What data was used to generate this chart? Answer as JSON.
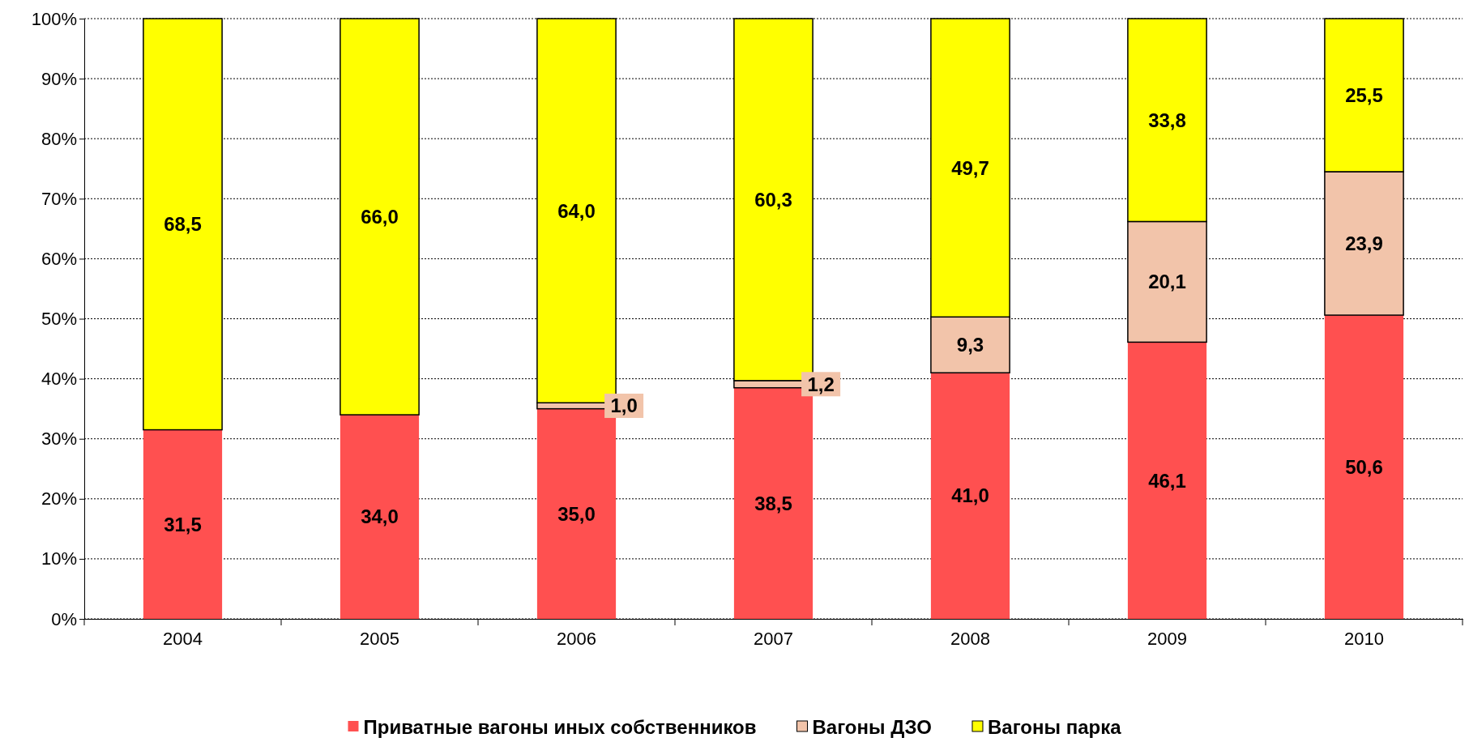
{
  "chart_data": {
    "type": "bar",
    "stacked": true,
    "categories": [
      "2004",
      "2005",
      "2006",
      "2007",
      "2008",
      "2009",
      "2010"
    ],
    "series": [
      {
        "name": "Приватные вагоны иных собственников",
        "color": "#ff5050",
        "values": [
          31.5,
          34.0,
          35.0,
          38.5,
          41.0,
          46.1,
          50.6
        ],
        "value_labels": [
          "31,5",
          "34,0",
          "35,0",
          "38,5",
          "41,0",
          "46,1",
          "50,6"
        ]
      },
      {
        "name": "Вагоны ДЗО",
        "color": "#f2c4aa",
        "values": [
          0,
          0,
          1.0,
          1.2,
          9.3,
          20.1,
          23.9
        ],
        "value_labels": [
          null,
          null,
          "1,0",
          "1,2",
          "9,3",
          "20,1",
          "23,9"
        ]
      },
      {
        "name": "Вагоны парка",
        "color": "#ffff00",
        "values": [
          68.5,
          66.0,
          64.0,
          60.3,
          49.7,
          33.8,
          25.5
        ],
        "value_labels": [
          "68,5",
          "66,0",
          "64,0",
          "60,3",
          "49,7",
          "33,8",
          "25,5"
        ]
      }
    ],
    "ylim": [
      0,
      100
    ],
    "yticks": [
      {
        "value": 0,
        "label": "0%"
      },
      {
        "value": 10,
        "label": "10%"
      },
      {
        "value": 20,
        "label": "20%"
      },
      {
        "value": 30,
        "label": "30%"
      },
      {
        "value": 40,
        "label": "40%"
      },
      {
        "value": 50,
        "label": "50%"
      },
      {
        "value": 60,
        "label": "60%"
      },
      {
        "value": 70,
        "label": "70%"
      },
      {
        "value": 80,
        "label": "80%"
      },
      {
        "value": 90,
        "label": "90%"
      },
      {
        "value": 100,
        "label": "100%"
      }
    ],
    "grid": "y",
    "legend": "bottom"
  }
}
